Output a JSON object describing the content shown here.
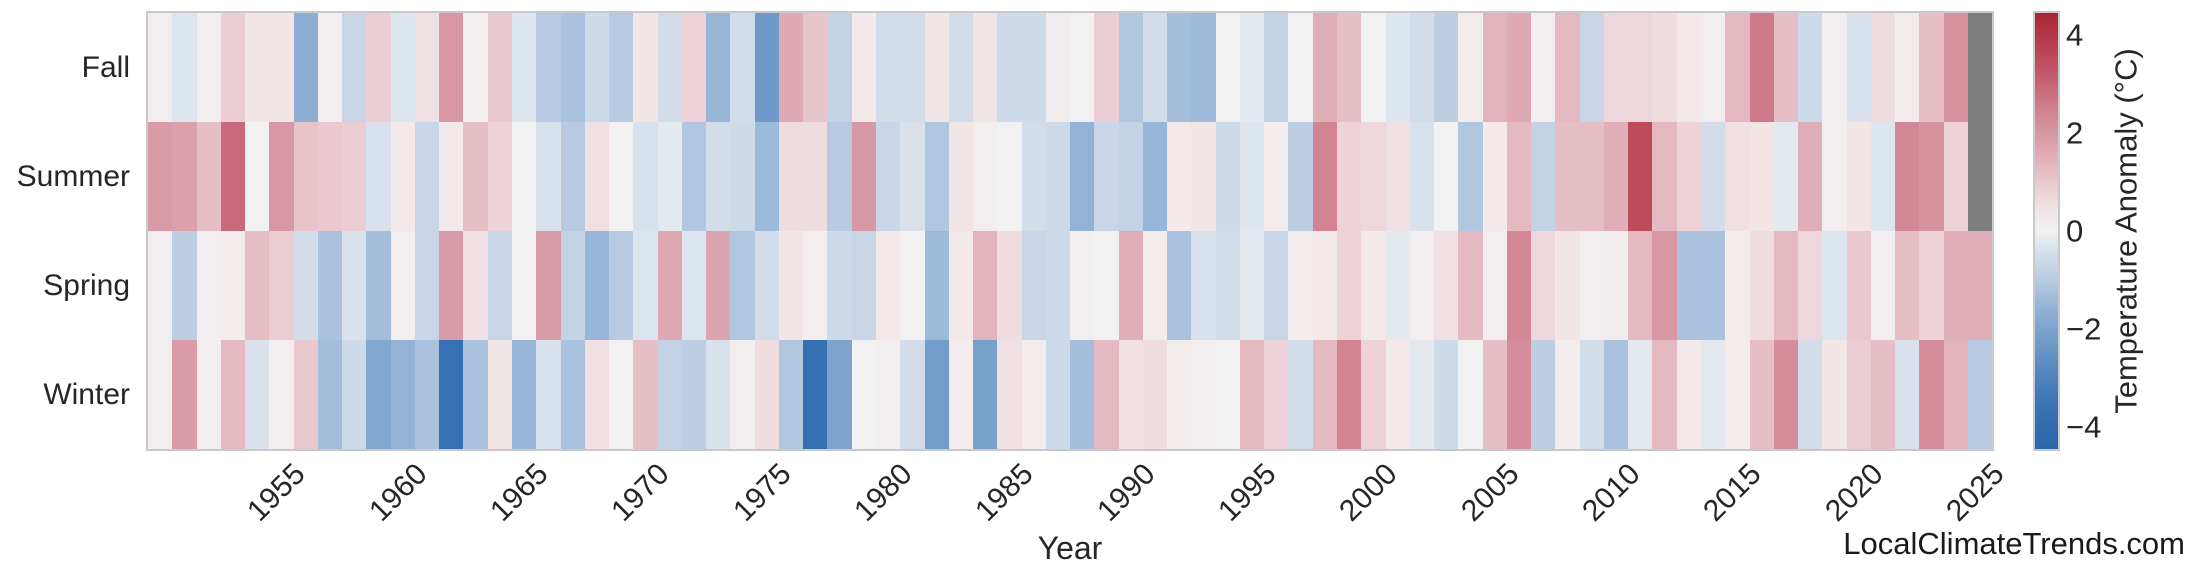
{
  "watermark": "LocalClimateTrends.com",
  "x_axis": {
    "title": "Year",
    "tick_labels": [
      "1955",
      "1960",
      "1965",
      "1970",
      "1975",
      "1980",
      "1985",
      "1990",
      "1995",
      "2000",
      "2005",
      "2010",
      "2015",
      "2020",
      "2025"
    ],
    "tick_years": [
      1955,
      1960,
      1965,
      1970,
      1975,
      1980,
      1985,
      1990,
      1995,
      2000,
      2005,
      2010,
      2015,
      2020,
      2025
    ]
  },
  "y_axis": {
    "labels": [
      "Fall",
      "Summer",
      "Spring",
      "Winter"
    ]
  },
  "colorbar": {
    "title": "Temperature Anomaly (°C)",
    "tick_labels": [
      "4",
      "2",
      "0",
      "−2",
      "−4"
    ],
    "tick_values": [
      4,
      2,
      0,
      -2,
      -4
    ],
    "vmin": -4.45,
    "vmax": 4.45
  },
  "colors": {
    "nan_cell": "#7f7f7f",
    "spine": "#c9c9cc",
    "axis_text": "#262626",
    "watermark_text": "#1a1a1a",
    "palette": [
      [
        -4.5,
        "#2a65ab"
      ],
      [
        -3.5,
        "#3a74b5"
      ],
      [
        -2.5,
        "#6392c4"
      ],
      [
        -1.5,
        "#98b6d8"
      ],
      [
        -0.8,
        "#c3d2e5"
      ],
      [
        -0.3,
        "#dde5ee"
      ],
      [
        0.0,
        "#f1f1f2"
      ],
      [
        0.3,
        "#f3e9ea"
      ],
      [
        0.8,
        "#edd3d8"
      ],
      [
        1.5,
        "#e0aeb8"
      ],
      [
        2.5,
        "#d07f8f"
      ],
      [
        3.5,
        "#bd4b5b"
      ],
      [
        4.5,
        "#a8242f"
      ]
    ]
  },
  "chart_data": {
    "type": "heatmap",
    "title": "",
    "xlabel": "Year",
    "ylabel": "",
    "colorbar_label": "Temperature Anomaly (°C)",
    "vmin": -4.45,
    "vmax": 4.45,
    "x_start_year": 1950,
    "x_end_year": 2025,
    "x": [
      1950,
      1951,
      1952,
      1953,
      1954,
      1955,
      1956,
      1957,
      1958,
      1959,
      1960,
      1961,
      1962,
      1963,
      1964,
      1965,
      1966,
      1967,
      1968,
      1969,
      1970,
      1971,
      1972,
      1973,
      1974,
      1975,
      1976,
      1977,
      1978,
      1979,
      1980,
      1981,
      1982,
      1983,
      1984,
      1985,
      1986,
      1987,
      1988,
      1989,
      1990,
      1991,
      1992,
      1993,
      1994,
      1995,
      1996,
      1997,
      1998,
      1999,
      2000,
      2001,
      2002,
      2003,
      2004,
      2005,
      2006,
      2007,
      2008,
      2009,
      2010,
      2011,
      2012,
      2013,
      2014,
      2015,
      2016,
      2017,
      2018,
      2019,
      2020,
      2021,
      2022,
      2023,
      2024,
      2025
    ],
    "rows": [
      "Fall",
      "Summer",
      "Spring",
      "Winter"
    ],
    "series": [
      {
        "name": "Fall",
        "values": [
          0.1,
          -0.3,
          0.1,
          0.9,
          0.4,
          0.4,
          -1.7,
          0.1,
          -0.7,
          0.9,
          -0.3,
          0.5,
          2.0,
          0.1,
          1.0,
          -0.3,
          -1.0,
          -1.2,
          -0.6,
          -1.0,
          0.4,
          -0.5,
          0.8,
          -1.5,
          -0.5,
          -2.3,
          1.6,
          1.1,
          -0.8,
          0.3,
          -0.5,
          -0.5,
          0.4,
          -0.5,
          0.4,
          -0.6,
          -0.6,
          0.2,
          0.0,
          0.9,
          -1.1,
          -0.5,
          -1.3,
          -1.4,
          0.0,
          -0.2,
          -0.8,
          0.0,
          1.5,
          1.2,
          0.0,
          -0.3,
          -0.5,
          -0.9,
          0.2,
          1.4,
          1.6,
          0.1,
          1.3,
          -0.7,
          0.7,
          0.7,
          0.6,
          0.3,
          0.1,
          1.3,
          2.6,
          1.2,
          -0.6,
          0.1,
          -0.4,
          0.6,
          0.2,
          1.2,
          2.1,
          null
        ]
      },
      {
        "name": "Summer",
        "values": [
          1.9,
          1.8,
          1.2,
          2.9,
          0.0,
          2.0,
          1.1,
          1.0,
          0.9,
          -0.4,
          0.3,
          -0.7,
          0.3,
          1.2,
          0.8,
          0.0,
          -0.4,
          -1.0,
          0.5,
          0.0,
          -0.4,
          -0.2,
          -1.1,
          -0.5,
          -0.6,
          -1.4,
          0.6,
          0.6,
          -1.0,
          2.0,
          -0.7,
          -0.4,
          -1.1,
          0.4,
          0.1,
          0.0,
          -0.5,
          -0.6,
          -1.6,
          -0.7,
          -0.8,
          -1.5,
          0.3,
          0.4,
          -0.6,
          -0.3,
          0.2,
          -0.9,
          2.4,
          0.8,
          0.7,
          0.5,
          -0.4,
          0.0,
          -1.1,
          0.3,
          1.3,
          -0.8,
          1.2,
          1.2,
          1.5,
          3.5,
          1.3,
          0.8,
          -0.5,
          0.5,
          0.4,
          -0.2,
          1.5,
          0.1,
          0.4,
          -0.3,
          2.3,
          2.1,
          0.8,
          null
        ]
      },
      {
        "name": "Spring",
        "values": [
          0.1,
          -0.9,
          0.1,
          0.2,
          1.2,
          0.9,
          -0.5,
          -1.2,
          -0.4,
          -1.3,
          0.1,
          -0.7,
          1.9,
          0.5,
          -0.7,
          0.0,
          1.9,
          -0.8,
          -1.5,
          -1.0,
          -0.3,
          1.6,
          -0.3,
          1.7,
          -1.1,
          -0.5,
          0.4,
          0.1,
          -0.6,
          -0.7,
          0.3,
          0.0,
          -1.4,
          0.3,
          1.4,
          0.6,
          -0.7,
          -0.6,
          0.1,
          0.0,
          1.5,
          0.2,
          -1.2,
          -0.4,
          -0.5,
          -0.2,
          -0.7,
          0.2,
          0.3,
          0.8,
          0.3,
          -0.2,
          0.1,
          0.5,
          1.3,
          0.1,
          2.3,
          0.7,
          0.4,
          0.1,
          0.2,
          1.3,
          2.0,
          -1.2,
          -1.2,
          0.2,
          0.6,
          1.3,
          0.7,
          -0.3,
          1.0,
          0.1,
          1.2,
          0.8,
          1.5,
          1.5
        ]
      },
      {
        "name": "Winter",
        "values": [
          0.1,
          1.9,
          0.1,
          1.3,
          -0.4,
          0.1,
          1.0,
          -1.3,
          -0.6,
          -1.9,
          -1.6,
          -1.2,
          -3.7,
          -1.2,
          0.4,
          -1.5,
          -0.4,
          -1.2,
          0.5,
          0.0,
          1.2,
          -0.8,
          -0.9,
          -0.4,
          0.1,
          0.6,
          -1.1,
          -3.8,
          -2.0,
          0.0,
          0.1,
          -0.5,
          -2.2,
          0.2,
          -2.1,
          0.5,
          0.2,
          -0.6,
          -1.3,
          1.3,
          0.5,
          0.6,
          0.2,
          0.1,
          0.0,
          1.3,
          0.8,
          -0.5,
          1.3,
          2.4,
          0.8,
          0.3,
          -0.2,
          -0.6,
          0.0,
          1.2,
          2.2,
          -0.9,
          0.2,
          -0.5,
          -1.2,
          -0.2,
          1.3,
          0.3,
          -0.2,
          0.2,
          1.2,
          2.2,
          -0.5,
          0.4,
          0.9,
          1.2,
          -0.4,
          2.2,
          1.4,
          -1.0
        ]
      }
    ],
    "missing_data": [
      {
        "row": "Fall",
        "year": 2025
      },
      {
        "row": "Summer",
        "year": 2025
      }
    ],
    "legend_position": "right-colorbar",
    "grid": false
  }
}
